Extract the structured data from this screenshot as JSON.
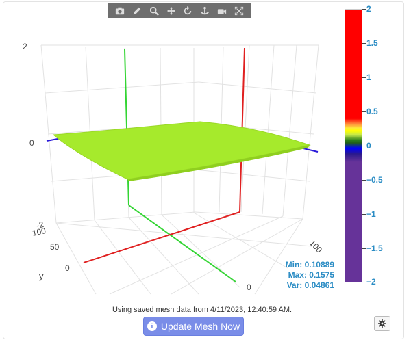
{
  "modebar": {
    "buttons": [
      "camera-icon",
      "pencil-icon",
      "zoom-icon",
      "pan-icon",
      "orbit-icon",
      "turntable-icon",
      "reset-camera-icon",
      "autoscale-icon"
    ]
  },
  "plot": {
    "z_ticks": [
      "2",
      "0",
      "-2"
    ],
    "y_ticks": [
      "100",
      "50",
      "0"
    ],
    "y_label": "y",
    "x_ticks": [
      "100",
      "0"
    ],
    "surface_color": "#a6ea2c"
  },
  "stats": {
    "min": "Min: 0.10889",
    "max": "Max: 0.1575",
    "var": "Var: 0.04861"
  },
  "colorbar": {
    "ticks": [
      "2",
      "1.5",
      "1",
      "0.5",
      "0",
      "−0.5",
      "−1",
      "−1.5",
      "−2"
    ]
  },
  "footer": {
    "status": "Using saved mesh data from 4/11/2023, 12:40:59 AM.",
    "update_label": "Update Mesh Now"
  }
}
